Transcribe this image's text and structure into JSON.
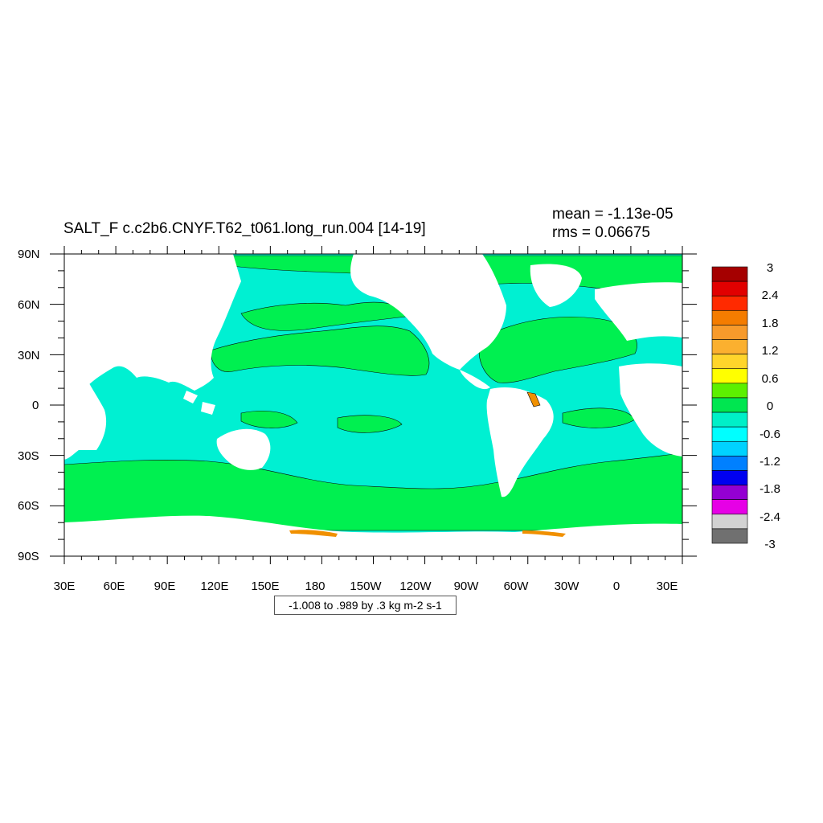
{
  "title": "SALT_F c.c2b6.CNYF.T62_t061.long_run.004 [14-19]",
  "stats": {
    "mean": "mean = -1.13e-05",
    "rms": "rms = 0.06675"
  },
  "contour_info": "-1.008 to .989 by .3 kg m-2 s-1",
  "lat_ticks": [
    "90N",
    "60N",
    "30N",
    "0",
    "30S",
    "60S",
    "90S"
  ],
  "lon_ticks": [
    "30E",
    "60E",
    "90E",
    "120E",
    "150E",
    "180",
    "150W",
    "120W",
    "90W",
    "60W",
    "30W",
    "0",
    "30E"
  ],
  "colorbar": {
    "colors": [
      "#a50000",
      "#e10000",
      "#ff2a00",
      "#f47c00",
      "#f79a2b",
      "#fbb02f",
      "#ffd52b",
      "#ffff00",
      "#5cf000",
      "#00e650",
      "#00f0c8",
      "#00ffff",
      "#00d2ff",
      "#0080ff",
      "#0000f0",
      "#9400d2",
      "#e600e6",
      "#d2d2d2",
      "#707070"
    ],
    "labels": [
      "3",
      "2.4",
      "1.8",
      "1.2",
      "0.6",
      "0",
      "-0.6",
      "-1.2",
      "-1.8",
      "-2.4",
      "-3"
    ]
  },
  "map_colors": {
    "positive": "#00f050",
    "near_zero": "#00f0d2",
    "negative_small": "#00ffff",
    "high": "#f09000",
    "land": "#ffffff"
  }
}
